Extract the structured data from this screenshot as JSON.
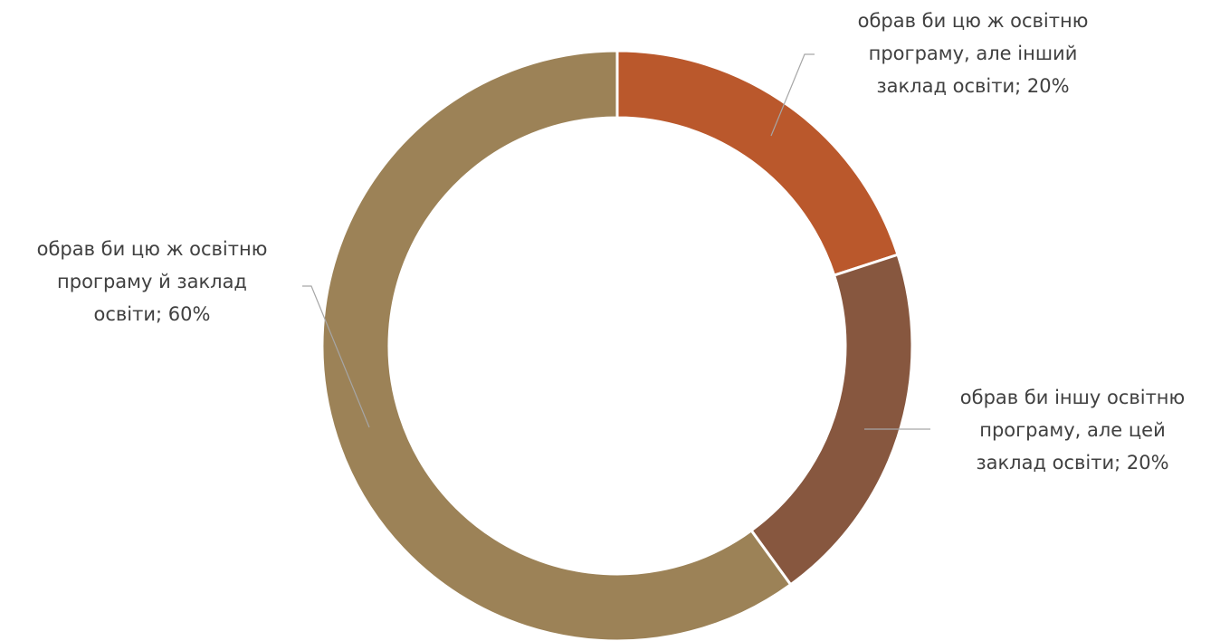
{
  "chart_data": {
    "type": "pie",
    "donut": true,
    "title": "",
    "start_angle_deg": 0,
    "direction": "clockwise",
    "slices": [
      {
        "label": "обрав би цю ж освітню програму, але інший заклад освіти",
        "value": 20,
        "value_label": "20%",
        "label_lines": [
          "обрав би цю ж освітню",
          "програму, але інший",
          "заклад освіти; 20%"
        ],
        "color": "#BA582C"
      },
      {
        "label": "обрав би іншу освітню програму, але цей заклад освіти",
        "value": 20,
        "value_label": "20%",
        "label_lines": [
          "обрав би іншу освітню",
          "програму, але цей",
          "заклад освіти; 20%"
        ],
        "color": "#87573F"
      },
      {
        "label": "обрав би цю ж освітню програму й заклад освіти",
        "value": 60,
        "value_label": "60%",
        "label_lines": [
          "обрав би цю ж освітню",
          "програму й заклад",
          "освіти; 60%"
        ],
        "color": "#9C8257"
      }
    ],
    "legend": "none",
    "label_text_color": "#404040",
    "leader_line_color": "#A6A6A6",
    "slice_separator_color": "#FFFFFF"
  }
}
